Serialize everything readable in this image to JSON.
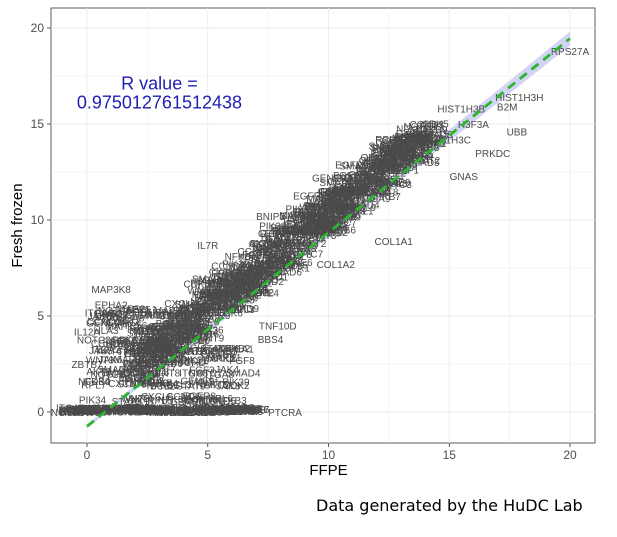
{
  "chart_data": {
    "type": "scatter",
    "xlabel": "FFPE",
    "ylabel": "Fresh frozen",
    "xlim": [
      -2,
      21
    ],
    "ylim": [
      -1.2,
      21
    ],
    "xticks": [
      0,
      5,
      10,
      15,
      20
    ],
    "yticks": [
      0,
      5,
      10,
      15,
      20
    ],
    "grid": true,
    "annotation": {
      "line1": "R value =",
      "line2": "0.975012761512438",
      "x": 3,
      "y": 16.8,
      "color": "#1f1fb4"
    },
    "fit_line": {
      "x": [
        0,
        20
      ],
      "y": [
        -0.75,
        19.45
      ],
      "color": "#2db52d",
      "band_color": "#c9cdf2"
    },
    "labels": [
      {
        "t": "RPS27A",
        "x": 20.0,
        "y": 18.8
      },
      {
        "t": "HIST1H3H",
        "x": 17.9,
        "y": 16.4
      },
      {
        "t": "B2M",
        "x": 17.4,
        "y": 15.9
      },
      {
        "t": "HIST1H3B",
        "x": 15.5,
        "y": 15.8
      },
      {
        "t": "H3F3A",
        "x": 16.0,
        "y": 15.0
      },
      {
        "t": "UBB",
        "x": 17.8,
        "y": 14.6
      },
      {
        "t": "HIST1H3C",
        "x": 14.9,
        "y": 14.2
      },
      {
        "t": "PRKDC",
        "x": 16.8,
        "y": 13.5
      },
      {
        "t": "GNAS",
        "x": 15.6,
        "y": 12.3
      },
      {
        "t": "MAP3K8",
        "x": 1.0,
        "y": 6.4
      },
      {
        "t": "EPHA2",
        "x": 1.0,
        "y": 5.6
      },
      {
        "t": "LAMC2",
        "x": 1.0,
        "y": 5.1
      },
      {
        "t": "IL12A",
        "x": 0.0,
        "y": 4.2
      },
      {
        "t": "ZBTB7",
        "x": 0.0,
        "y": 2.5
      },
      {
        "t": "TGFB2",
        "x": 1.2,
        "y": 2.0
      },
      {
        "t": "COL1A1",
        "x": 12.7,
        "y": 8.9
      },
      {
        "t": "COL1A2",
        "x": 10.3,
        "y": 7.7
      },
      {
        "t": "PTCRA",
        "x": 8.2,
        "y": 0.0
      },
      {
        "t": "BNIP3",
        "x": 7.6,
        "y": 10.2
      },
      {
        "t": "IL7R",
        "x": 5.0,
        "y": 8.7
      },
      {
        "t": "TNF10D",
        "x": 7.9,
        "y": 4.5
      },
      {
        "t": "BBS4",
        "x": 7.6,
        "y": 3.8
      },
      {
        "t": "DUSP1",
        "x": 2.9,
        "y": 5.2
      },
      {
        "t": "FOXO1",
        "x": 2.6,
        "y": 2.8
      },
      {
        "t": "PTCHD",
        "x": 4.2,
        "y": 2.6
      }
    ]
  },
  "footer": {
    "credit": "Data generated by the HuDC Lab"
  }
}
